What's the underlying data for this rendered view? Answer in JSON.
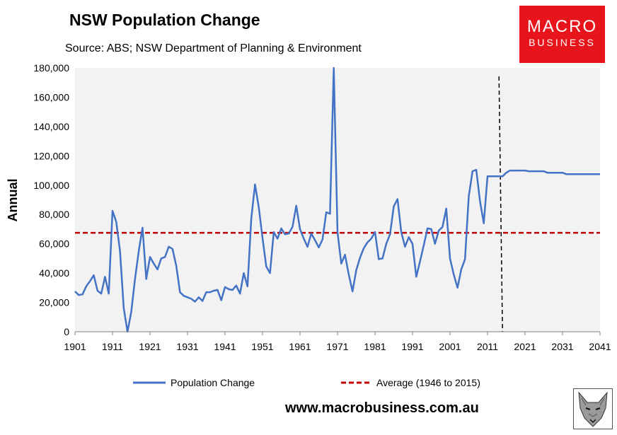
{
  "header": {
    "title": "NSW Population Change",
    "source": "Source: ABS; NSW Department of Planning & Environment"
  },
  "logo": {
    "line1": "MACRO",
    "line2": "BUSINESS"
  },
  "footer": {
    "url": "www.macrobusiness.com.au"
  },
  "colors": {
    "series": "#4472c4",
    "average": "#c00000",
    "logo_bg": "#e8141c",
    "plot_bg": "#f2f2f2"
  },
  "chart_data": {
    "type": "line",
    "ylabel": "Annual",
    "xlim": [
      1901,
      2041
    ],
    "ylim": [
      0,
      180000
    ],
    "x_ticks": [
      "1901",
      "1911",
      "1921",
      "1931",
      "1941",
      "1951",
      "1961",
      "1971",
      "1981",
      "1991",
      "2001",
      "2011",
      "2021",
      "2031",
      "2041"
    ],
    "y_ticks": [
      "0",
      "20,000",
      "40,000",
      "60,000",
      "80,000",
      "100,000",
      "120,000",
      "140,000",
      "160,000",
      "180,000"
    ],
    "series": [
      {
        "name": "Population Change",
        "x": [
          1901,
          1902,
          1903,
          1904,
          1905,
          1906,
          1907,
          1908,
          1909,
          1910,
          1911,
          1912,
          1913,
          1914,
          1915,
          1916,
          1917,
          1918,
          1919,
          1920,
          1921,
          1922,
          1923,
          1924,
          1925,
          1926,
          1927,
          1928,
          1929,
          1930,
          1931,
          1932,
          1933,
          1934,
          1935,
          1936,
          1937,
          1938,
          1939,
          1940,
          1941,
          1942,
          1943,
          1944,
          1945,
          1946,
          1947,
          1948,
          1949,
          1950,
          1951,
          1952,
          1953,
          1954,
          1955,
          1956,
          1957,
          1958,
          1959,
          1960,
          1961,
          1962,
          1963,
          1964,
          1965,
          1966,
          1967,
          1968,
          1969,
          1970,
          1971,
          1972,
          1973,
          1974,
          1975,
          1976,
          1977,
          1978,
          1979,
          1980,
          1981,
          1982,
          1983,
          1984,
          1985,
          1986,
          1987,
          1988,
          1989,
          1990,
          1991,
          1992,
          1993,
          1994,
          1995,
          1996,
          1997,
          1998,
          1999,
          2000,
          2001,
          2002,
          2003,
          2004,
          2005,
          2006,
          2007,
          2008,
          2009,
          2010,
          2011,
          2012,
          2013,
          2014,
          2015,
          2016,
          2017,
          2018,
          2019,
          2020,
          2021,
          2022,
          2023,
          2024,
          2025,
          2026,
          2027,
          2028,
          2029,
          2030,
          2031,
          2032,
          2033,
          2034,
          2035,
          2036,
          2037,
          2038,
          2039,
          2040,
          2041
        ],
        "values": [
          27500,
          25000,
          25500,
          31000,
          34500,
          38500,
          28000,
          26000,
          37500,
          26000,
          82500,
          75000,
          55000,
          16000,
          0,
          13500,
          36000,
          55000,
          71000,
          36000,
          51000,
          46500,
          42500,
          50000,
          51000,
          58000,
          56500,
          45000,
          27000,
          24500,
          23500,
          22500,
          20500,
          23500,
          21000,
          27000,
          27000,
          28000,
          28500,
          21500,
          30500,
          29000,
          28500,
          31500,
          26000,
          40000,
          31000,
          77000,
          100500,
          85000,
          64000,
          44500,
          40000,
          68000,
          63500,
          70500,
          66500,
          67000,
          71500,
          86000,
          70000,
          63500,
          58000,
          67000,
          62500,
          57500,
          63000,
          81500,
          80500,
          180000,
          68000,
          46500,
          52500,
          39000,
          27500,
          42000,
          50500,
          57000,
          61000,
          63500,
          68000,
          49500,
          50000,
          60000,
          66500,
          85500,
          90500,
          68000,
          58000,
          64500,
          60000,
          37500,
          48000,
          59000,
          70500,
          70000,
          60000,
          69000,
          71500,
          84000,
          50000,
          39000,
          30000,
          42500,
          49500,
          92500,
          109500,
          110500,
          89000,
          74000,
          106000,
          106000,
          106000,
          106000,
          106000,
          108500,
          110000,
          110000,
          110000,
          110000,
          110000,
          109500,
          109500,
          109500,
          109500,
          109500,
          108500,
          108500,
          108500,
          108500,
          108500,
          107500,
          107500,
          107500,
          107500,
          107500,
          107500,
          107500,
          107500,
          107500,
          107500
        ]
      },
      {
        "name": "Average (1946 to 2015)",
        "x": [
          1901,
          2041
        ],
        "values": [
          67500,
          67500
        ]
      }
    ],
    "vline_x": 2015,
    "legend_position": "bottom"
  }
}
